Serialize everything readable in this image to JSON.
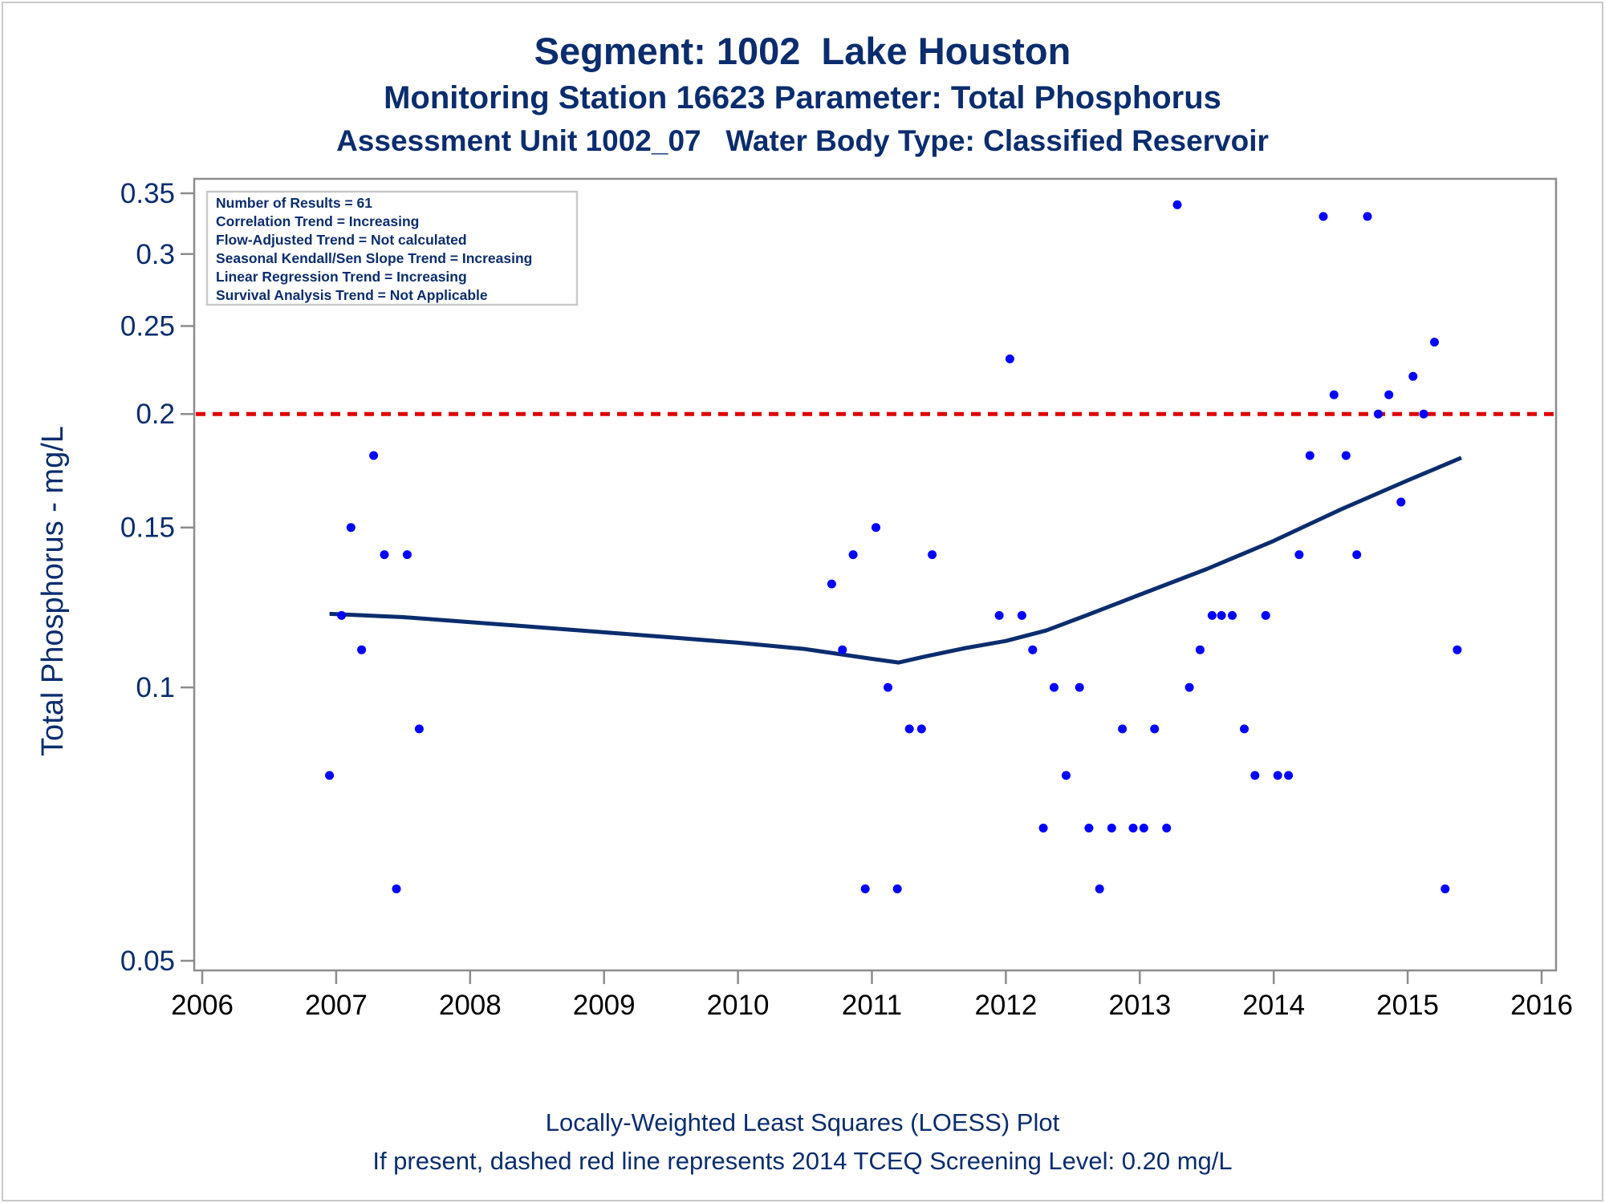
{
  "header": {
    "title": "Segment: 1002  Lake Houston",
    "subtitle": "Monitoring Station 16623 Parameter: Total Phosphorus",
    "subtitle2": "Assessment Unit 1002_07   Water Body Type: Classified Reservoir"
  },
  "footer": {
    "line1": "Locally-Weighted Least Squares (LOESS) Plot",
    "line2": "If present, dashed red line represents 2014 TCEQ Screening Level: 0.20 mg/L"
  },
  "stats_box": [
    "Number of Results = 61",
    "Correlation Trend = Increasing",
    "Flow-Adjusted Trend = Not calculated",
    "Seasonal Kendall/Sen Slope Trend = Increasing",
    "Linear Regression Trend = Increasing",
    "Survival Analysis Trend = Not Applicable"
  ],
  "colors": {
    "text": "#0b2d6e",
    "points": "#0000ff",
    "loess": "#0b2d6e",
    "screening": "#dd0000",
    "axis": "#8c8c8c"
  },
  "chart_data": {
    "type": "scatter",
    "ylabel": "Total Phosphorus - mg/L",
    "xlabel": "",
    "yscale": "log",
    "xlim": [
      2006,
      2016
    ],
    "ylim": [
      0.05,
      0.35
    ],
    "xticks": [
      2006,
      2007,
      2008,
      2009,
      2010,
      2011,
      2012,
      2013,
      2014,
      2015,
      2016
    ],
    "yticks": [
      0.05,
      0.1,
      0.15,
      0.2,
      0.25,
      0.3,
      0.35
    ],
    "ytick_labels": [
      "0.05",
      "0.1",
      "0.15",
      "0.2",
      "0.25",
      "0.3",
      "0.35"
    ],
    "screening_level": 0.2,
    "points": [
      [
        2006.95,
        0.08
      ],
      [
        2007.04,
        0.12
      ],
      [
        2007.11,
        0.15
      ],
      [
        2007.19,
        0.11
      ],
      [
        2007.28,
        0.18
      ],
      [
        2007.36,
        0.14
      ],
      [
        2007.45,
        0.06
      ],
      [
        2007.53,
        0.14
      ],
      [
        2007.62,
        0.09
      ],
      [
        2010.7,
        0.13
      ],
      [
        2010.78,
        0.11
      ],
      [
        2010.86,
        0.14
      ],
      [
        2010.95,
        0.06
      ],
      [
        2011.03,
        0.15
      ],
      [
        2011.12,
        0.1
      ],
      [
        2011.19,
        0.06
      ],
      [
        2011.28,
        0.09
      ],
      [
        2011.37,
        0.09
      ],
      [
        2011.45,
        0.14
      ],
      [
        2011.95,
        0.12
      ],
      [
        2012.03,
        0.23
      ],
      [
        2012.12,
        0.12
      ],
      [
        2012.2,
        0.11
      ],
      [
        2012.28,
        0.07
      ],
      [
        2012.36,
        0.1
      ],
      [
        2012.45,
        0.08
      ],
      [
        2012.55,
        0.1
      ],
      [
        2012.62,
        0.07
      ],
      [
        2012.7,
        0.06
      ],
      [
        2012.79,
        0.07
      ],
      [
        2012.87,
        0.09
      ],
      [
        2012.95,
        0.07
      ],
      [
        2013.03,
        0.07
      ],
      [
        2013.11,
        0.09
      ],
      [
        2013.2,
        0.07
      ],
      [
        2013.28,
        0.34
      ],
      [
        2013.37,
        0.1
      ],
      [
        2013.45,
        0.11
      ],
      [
        2013.54,
        0.12
      ],
      [
        2013.61,
        0.12
      ],
      [
        2013.69,
        0.12
      ],
      [
        2013.78,
        0.09
      ],
      [
        2013.86,
        0.08
      ],
      [
        2013.94,
        0.12
      ],
      [
        2014.03,
        0.08
      ],
      [
        2014.11,
        0.08
      ],
      [
        2014.19,
        0.14
      ],
      [
        2014.27,
        0.18
      ],
      [
        2014.37,
        0.33
      ],
      [
        2014.45,
        0.21
      ],
      [
        2014.54,
        0.18
      ],
      [
        2014.62,
        0.14
      ],
      [
        2014.7,
        0.33
      ],
      [
        2014.78,
        0.2
      ],
      [
        2014.86,
        0.21
      ],
      [
        2014.95,
        0.16
      ],
      [
        2015.04,
        0.22
      ],
      [
        2015.12,
        0.2
      ],
      [
        2015.2,
        0.24
      ],
      [
        2015.28,
        0.06
      ],
      [
        2015.37,
        0.11
      ]
    ],
    "loess": [
      [
        2006.95,
        0.1205
      ],
      [
        2007.5,
        0.1195
      ],
      [
        2008.0,
        0.118
      ],
      [
        2008.5,
        0.1165
      ],
      [
        2009.0,
        0.115
      ],
      [
        2009.5,
        0.1135
      ],
      [
        2010.0,
        0.112
      ],
      [
        2010.5,
        0.1102
      ],
      [
        2011.0,
        0.1075
      ],
      [
        2011.2,
        0.1065
      ],
      [
        2011.4,
        0.1082
      ],
      [
        2011.7,
        0.1105
      ],
      [
        2012.0,
        0.1125
      ],
      [
        2012.3,
        0.1155
      ],
      [
        2012.6,
        0.12
      ],
      [
        2013.0,
        0.1265
      ],
      [
        2013.5,
        0.135
      ],
      [
        2014.0,
        0.145
      ],
      [
        2014.5,
        0.157
      ],
      [
        2015.0,
        0.169
      ],
      [
        2015.4,
        0.179
      ]
    ]
  }
}
